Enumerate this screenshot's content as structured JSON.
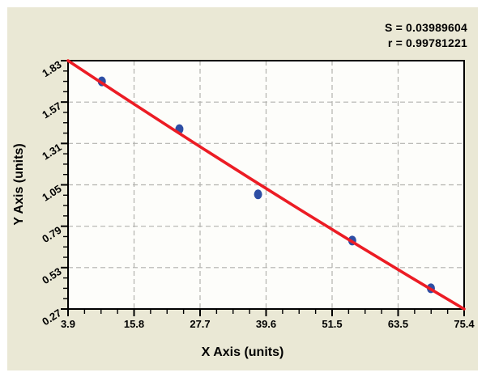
{
  "stats": {
    "s_line": "S = 0.03989604",
    "r_line": "r = 0.99781221"
  },
  "colors": {
    "panel_bg": "#eae8d5",
    "plot_bg": "#fdfdfa",
    "line": "#ec1c24",
    "point": "#2e4ea4",
    "grid": "#b2b2ae",
    "axis": "#000000"
  },
  "chart_data": {
    "type": "scatter",
    "title": "",
    "xlabel": "X Axis (units)",
    "ylabel": "Y Axis (units)",
    "xlim": [
      3.9,
      75.4
    ],
    "ylim": [
      0.27,
      1.83
    ],
    "x_tick_labels": [
      "3.9",
      "15.8",
      "27.7",
      "39.6",
      "51.5",
      "63.5",
      "75.4"
    ],
    "y_tick_labels": [
      "0.27",
      "0.53",
      "0.79",
      "1.05",
      "1.31",
      "1.57",
      "1.83"
    ],
    "minor_per_major": 4,
    "grid": true,
    "grid_style": "dashed",
    "legend": "none",
    "points": [
      {
        "x": 10.0,
        "y": 1.7
      },
      {
        "x": 24.0,
        "y": 1.4
      },
      {
        "x": 38.2,
        "y": 0.99
      },
      {
        "x": 55.2,
        "y": 0.7
      },
      {
        "x": 69.4,
        "y": 0.4
      }
    ],
    "fit_line": {
      "type": "linear-fit",
      "x1": 3.9,
      "y1": 1.83,
      "x2": 75.4,
      "y2": 0.27
    },
    "annotations": [
      "S = 0.03989604",
      "r = 0.99781221"
    ],
    "stats": {
      "S": "0.03989604",
      "r": "0.99781221"
    }
  }
}
